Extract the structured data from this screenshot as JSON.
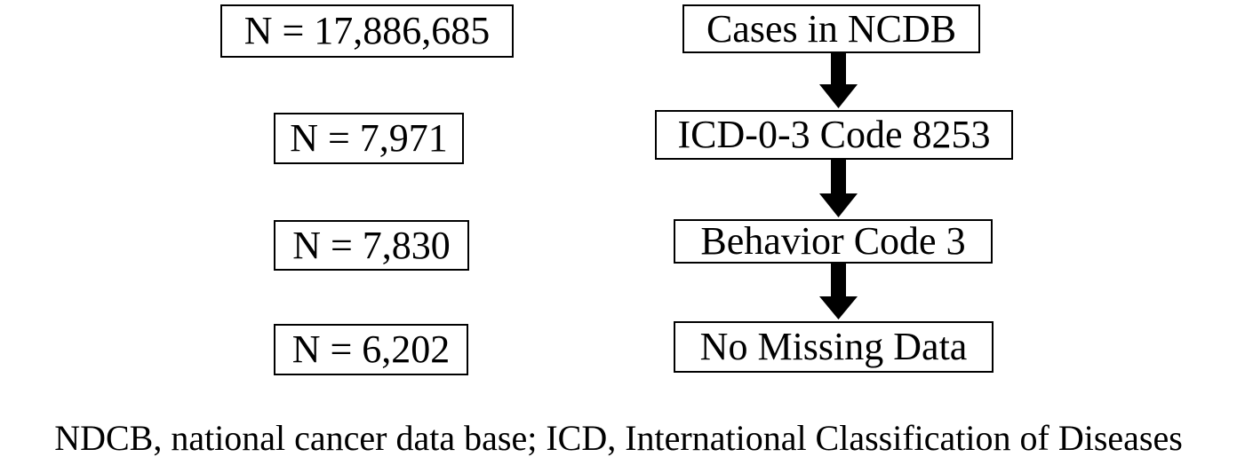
{
  "rows": [
    {
      "count": "N = 17,886,685",
      "step": "Cases in NCDB"
    },
    {
      "count": "N = 7,971",
      "step": "ICD-0-3 Code 8253"
    },
    {
      "count": "N = 7,830",
      "step": "Behavior Code 3"
    },
    {
      "count": "N = 6,202",
      "step": "No Missing Data"
    }
  ],
  "caption": "NDCB, national cancer data base; ICD, International Classification of Diseases"
}
